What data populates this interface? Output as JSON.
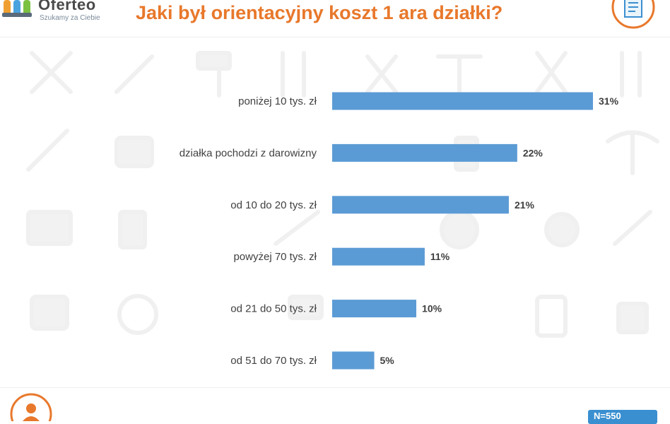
{
  "brand": {
    "name": "Oferteo",
    "tagline": "Szukamy za Ciebie",
    "accent_color": "#e8782b"
  },
  "header": {
    "title": "Jaki był orientacyjny koszt 1 ara działki?"
  },
  "footer": {
    "sample_badge": "N=550",
    "badge_color": "#3a8fd0"
  },
  "icons": {
    "brand_logo": "oferteo-logo-icon",
    "corner": "document-icon",
    "footer": "person-icon",
    "background": "tools-pattern-icon"
  },
  "chart_data": {
    "type": "bar",
    "orientation": "horizontal",
    "title": "Jaki był orientacyjny koszt 1 ara działki?",
    "categories": [
      "poniżej 10 tys. zł",
      "działka pochodzi z darowizny",
      "od 10 do 20 tys. zł",
      "powyżej 70 tys. zł",
      "od 21 do 50 tys. zł",
      "od 51 do 70 tys. zł"
    ],
    "values": [
      31,
      22,
      21,
      11,
      10,
      5
    ],
    "value_labels": [
      "31%",
      "22%",
      "21%",
      "11%",
      "10%",
      "5%"
    ],
    "unit": "%",
    "bar_color": "#5b9bd5",
    "xlim": [
      0,
      31
    ],
    "grid": false,
    "legend": "none"
  }
}
